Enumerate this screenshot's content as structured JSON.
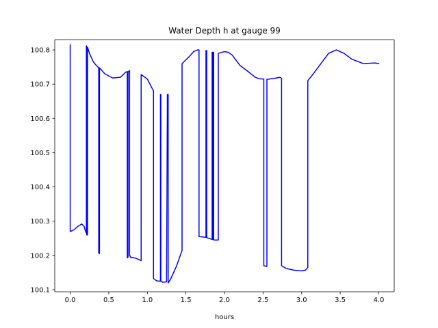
{
  "chart_data": {
    "type": "line",
    "title": "Water Depth h at gauge 99",
    "xlabel": "hours",
    "ylabel": "",
    "xlim": [
      -0.2,
      4.2
    ],
    "ylim": [
      100.094,
      100.83
    ],
    "xticks": [
      0.0,
      0.5,
      1.0,
      1.5,
      2.0,
      2.5,
      3.0,
      3.5,
      4.0
    ],
    "xtick_labels": [
      "0.0",
      "0.5",
      "1.0",
      "1.5",
      "2.0",
      "2.5",
      "3.0",
      "3.5",
      "4.0"
    ],
    "yticks": [
      100.1,
      100.2,
      100.3,
      100.4,
      100.5,
      100.6,
      100.7,
      100.8
    ],
    "ytick_labels": [
      "100.1",
      "100.2",
      "100.3",
      "100.4",
      "100.5",
      "100.6",
      "100.7",
      "100.8"
    ],
    "grid": false,
    "legend": "none",
    "series": [
      {
        "color": "#0000ff",
        "x": [
          0.0,
          0.0,
          0.05,
          0.1,
          0.15,
          0.18,
          0.2,
          0.21,
          0.21,
          0.215,
          0.215,
          0.225,
          0.225,
          0.25,
          0.3,
          0.35,
          0.37,
          0.37,
          0.38,
          0.38,
          0.45,
          0.55,
          0.65,
          0.72,
          0.74,
          0.74,
          0.75,
          0.75,
          0.77,
          0.77,
          0.78,
          0.78,
          0.85,
          0.92,
          0.92,
          1.0,
          1.08,
          1.08,
          1.12,
          1.16,
          1.17,
          1.17,
          1.175,
          1.175,
          1.2,
          1.25,
          1.26,
          1.26,
          1.27,
          1.27,
          1.3,
          1.38,
          1.45,
          1.45,
          1.55,
          1.6,
          1.65,
          1.67,
          1.67,
          1.76,
          1.76,
          1.77,
          1.77,
          1.8,
          1.84,
          1.84,
          1.85,
          1.85,
          1.86,
          1.86,
          1.92,
          1.92,
          2.0,
          2.05,
          2.1,
          2.2,
          2.3,
          2.4,
          2.45,
          2.5,
          2.51,
          2.51,
          2.55,
          2.55,
          2.65,
          2.72,
          2.74,
          2.74,
          2.8,
          2.9,
          3.0,
          3.05,
          3.08,
          3.08,
          3.15,
          3.25,
          3.35,
          3.45,
          3.55,
          3.65,
          3.8,
          3.95,
          4.0
        ],
        "y": [
          100.815,
          100.27,
          100.275,
          100.285,
          100.292,
          100.285,
          100.27,
          100.265,
          100.812,
          100.805,
          100.26,
          100.26,
          100.808,
          100.79,
          100.765,
          100.752,
          100.748,
          100.208,
          100.205,
          100.748,
          100.73,
          100.718,
          100.72,
          100.735,
          100.737,
          100.193,
          100.195,
          100.735,
          100.74,
          100.2,
          100.198,
          100.195,
          100.192,
          100.185,
          100.728,
          100.715,
          100.68,
          100.133,
          100.126,
          100.125,
          100.125,
          100.67,
          100.67,
          100.125,
          100.122,
          100.123,
          100.667,
          100.67,
          100.67,
          100.12,
          100.13,
          100.17,
          100.215,
          100.76,
          100.782,
          100.795,
          100.8,
          100.8,
          100.255,
          100.253,
          100.798,
          100.798,
          100.252,
          100.25,
          100.247,
          100.793,
          100.793,
          100.247,
          100.793,
          100.245,
          100.245,
          100.79,
          100.795,
          100.793,
          100.785,
          100.755,
          100.738,
          100.72,
          100.716,
          100.715,
          100.715,
          100.17,
          100.168,
          100.714,
          100.717,
          100.72,
          100.717,
          100.17,
          100.162,
          100.157,
          100.155,
          100.157,
          100.165,
          100.71,
          100.73,
          100.76,
          100.79,
          100.8,
          100.79,
          100.773,
          100.76,
          100.762,
          100.76
        ]
      }
    ]
  }
}
